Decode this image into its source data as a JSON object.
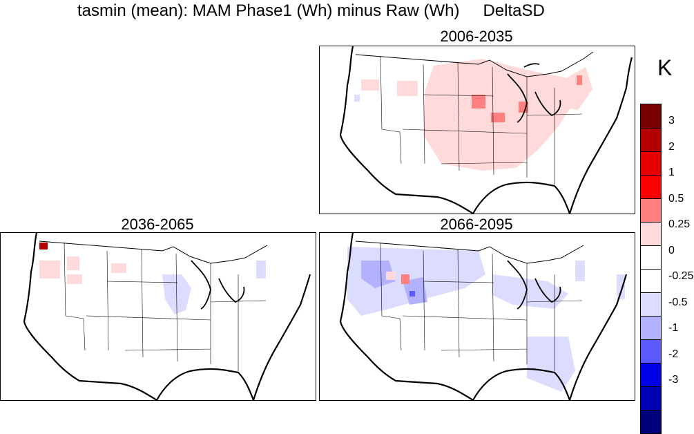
{
  "figure": {
    "title": "tasmin (mean): MAM Phase1 (Wh) minus Raw (Wh)",
    "model_label": "DeltaSD",
    "units": "K"
  },
  "panels": [
    {
      "id": "p2006",
      "title": "2006-2035"
    },
    {
      "id": "p2036",
      "title": "2036-2065"
    },
    {
      "id": "p2066",
      "title": "2066-2095"
    }
  ],
  "colorbar": {
    "colors": [
      "#7a0000",
      "#b40000",
      "#e60000",
      "#ff0000",
      "#ff7f7f",
      "#ffdada",
      "#ffffff",
      "#ffffff",
      "#dcdcff",
      "#b2b2ff",
      "#5a5aff",
      "#0000e6",
      "#0000b4",
      "#00007a"
    ],
    "labels": [
      "3",
      "2",
      "1",
      "0.5",
      "0.25",
      "0",
      "-0.25",
      "-0.5",
      "-1",
      "-2",
      "-3"
    ]
  },
  "map": {
    "land_color": "#ffffff",
    "border_color": "#000000",
    "region": "contiguous United States"
  }
}
